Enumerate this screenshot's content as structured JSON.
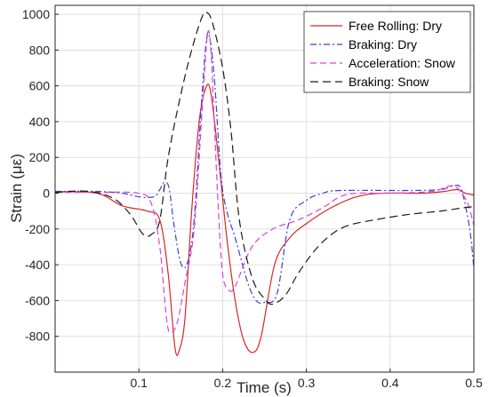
{
  "chart_data": {
    "type": "line",
    "xlabel": "Time (s)",
    "ylabel": "Strain (με)",
    "xlim": [
      0,
      0.5
    ],
    "ylim": [
      -1000,
      1050
    ],
    "xticks": [
      0.1,
      0.2,
      0.3,
      0.4,
      0.5
    ],
    "xtick_labels": [
      "0.1",
      "0.2",
      "0.3",
      "0.4",
      "0.5"
    ],
    "yticks": [
      -800,
      -600,
      -400,
      -200,
      0,
      200,
      400,
      600,
      800,
      1000
    ],
    "ytick_labels": [
      "-800",
      "-600",
      "-400",
      "-200",
      "0",
      "200",
      "400",
      "600",
      "800",
      "1000"
    ],
    "grid": true,
    "legend_position": "top-right",
    "series": [
      {
        "name": "Free Rolling: Dry",
        "color": "#d62728",
        "dash": "solid",
        "points": [
          [
            0,
            8
          ],
          [
            0.05,
            0
          ],
          [
            0.08,
            -70
          ],
          [
            0.11,
            -100
          ],
          [
            0.125,
            -150
          ],
          [
            0.135,
            -450
          ],
          [
            0.143,
            -860
          ],
          [
            0.148,
            -880
          ],
          [
            0.155,
            -700
          ],
          [
            0.163,
            -100
          ],
          [
            0.172,
            400
          ],
          [
            0.18,
            590
          ],
          [
            0.186,
            560
          ],
          [
            0.195,
            200
          ],
          [
            0.205,
            -250
          ],
          [
            0.215,
            -600
          ],
          [
            0.225,
            -820
          ],
          [
            0.236,
            -890
          ],
          [
            0.246,
            -800
          ],
          [
            0.262,
            -400
          ],
          [
            0.28,
            -250
          ],
          [
            0.3,
            -170
          ],
          [
            0.33,
            -80
          ],
          [
            0.36,
            -20
          ],
          [
            0.39,
            0
          ],
          [
            0.44,
            0
          ],
          [
            0.465,
            10
          ],
          [
            0.48,
            20
          ],
          [
            0.49,
            0
          ],
          [
            0.5,
            -10
          ]
        ]
      },
      {
        "name": "Braking: Dry",
        "color": "#3a3fd6",
        "dash": "dashdot",
        "points": [
          [
            0,
            10
          ],
          [
            0.05,
            10
          ],
          [
            0.08,
            0
          ],
          [
            0.1,
            -20
          ],
          [
            0.118,
            -20
          ],
          [
            0.125,
            20
          ],
          [
            0.13,
            60
          ],
          [
            0.136,
            30
          ],
          [
            0.142,
            -180
          ],
          [
            0.15,
            -390
          ],
          [
            0.158,
            -390
          ],
          [
            0.166,
            -150
          ],
          [
            0.174,
            450
          ],
          [
            0.18,
            830
          ],
          [
            0.184,
            880
          ],
          [
            0.19,
            650
          ],
          [
            0.198,
            100
          ],
          [
            0.205,
            -100
          ],
          [
            0.215,
            -250
          ],
          [
            0.23,
            -500
          ],
          [
            0.24,
            -600
          ],
          [
            0.25,
            -610
          ],
          [
            0.265,
            -560
          ],
          [
            0.28,
            -150
          ],
          [
            0.3,
            -40
          ],
          [
            0.32,
            0
          ],
          [
            0.34,
            15
          ],
          [
            0.42,
            15
          ],
          [
            0.46,
            20
          ],
          [
            0.475,
            40
          ],
          [
            0.485,
            20
          ],
          [
            0.495,
            -200
          ],
          [
            0.5,
            -420
          ]
        ]
      },
      {
        "name": "Acceleration: Snow",
        "color": "#e040d8",
        "dash": "dashed",
        "points": [
          [
            0,
            5
          ],
          [
            0.05,
            5
          ],
          [
            0.1,
            0
          ],
          [
            0.115,
            -60
          ],
          [
            0.125,
            -300
          ],
          [
            0.133,
            -700
          ],
          [
            0.138,
            -780
          ],
          [
            0.146,
            -720
          ],
          [
            0.155,
            -500
          ],
          [
            0.166,
            -200
          ],
          [
            0.176,
            500
          ],
          [
            0.182,
            890
          ],
          [
            0.186,
            800
          ],
          [
            0.19,
            400
          ],
          [
            0.195,
            -100
          ],
          [
            0.2,
            -450
          ],
          [
            0.207,
            -540
          ],
          [
            0.215,
            -520
          ],
          [
            0.235,
            -300
          ],
          [
            0.26,
            -200
          ],
          [
            0.29,
            -150
          ],
          [
            0.32,
            -80
          ],
          [
            0.34,
            -20
          ],
          [
            0.36,
            0
          ],
          [
            0.4,
            0
          ],
          [
            0.45,
            10
          ],
          [
            0.47,
            40
          ],
          [
            0.48,
            30
          ],
          [
            0.492,
            -50
          ],
          [
            0.5,
            -180
          ]
        ]
      },
      {
        "name": "Braking: Snow",
        "color": "#1a1a1a",
        "dash": "longdash",
        "points": [
          [
            0,
            5
          ],
          [
            0.04,
            10
          ],
          [
            0.07,
            -30
          ],
          [
            0.09,
            -120
          ],
          [
            0.105,
            -230
          ],
          [
            0.115,
            -230
          ],
          [
            0.125,
            -150
          ],
          [
            0.135,
            200
          ],
          [
            0.15,
            550
          ],
          [
            0.163,
            800
          ],
          [
            0.175,
            980
          ],
          [
            0.181,
            1010
          ],
          [
            0.188,
            950
          ],
          [
            0.2,
            700
          ],
          [
            0.21,
            350
          ],
          [
            0.22,
            -150
          ],
          [
            0.235,
            -470
          ],
          [
            0.25,
            -590
          ],
          [
            0.26,
            -620
          ],
          [
            0.275,
            -570
          ],
          [
            0.29,
            -450
          ],
          [
            0.31,
            -320
          ],
          [
            0.33,
            -230
          ],
          [
            0.35,
            -180
          ],
          [
            0.38,
            -150
          ],
          [
            0.42,
            -120
          ],
          [
            0.46,
            -100
          ],
          [
            0.49,
            -80
          ],
          [
            0.5,
            -75
          ]
        ]
      }
    ]
  }
}
